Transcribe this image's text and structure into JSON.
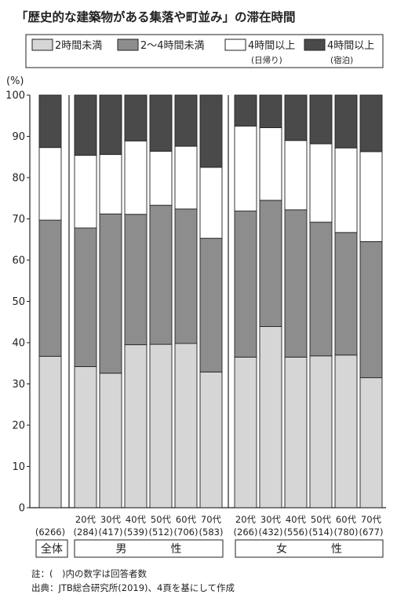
{
  "title": "「歴史的な建築物がある集落や町並み」の滞在時間",
  "legend": [
    {
      "label": "2時間未満",
      "sub": "",
      "color": "#d6d6d6"
    },
    {
      "label": "2～4時間未満",
      "sub": "",
      "color": "#8d8d8d"
    },
    {
      "label": "4時間以上",
      "sub": "(日帰り)",
      "color": "#ffffff"
    },
    {
      "label": "4時間以上",
      "sub": "(宿泊)",
      "color": "#4a4a4a"
    }
  ],
  "y_unit": "(%)",
  "groups": [
    {
      "label": "全体",
      "bars": [
        0
      ]
    },
    {
      "label": "男　　　　性",
      "bars": [
        1,
        2,
        3,
        4,
        5,
        6
      ]
    },
    {
      "label": "女　　　　性",
      "bars": [
        7,
        8,
        9,
        10,
        11,
        12
      ]
    }
  ],
  "notes": [
    "註：(　)内の数字は回答者数",
    "出典：JTB総合研究所(2019)、4頁を基にして作成"
  ],
  "chart_data": {
    "type": "bar",
    "stacked": true,
    "ylim": [
      0,
      100
    ],
    "yticks": [
      0,
      10,
      20,
      30,
      40,
      50,
      60,
      70,
      80,
      90,
      100
    ],
    "categories": [
      {
        "age": "",
        "n": "(6266)"
      },
      {
        "age": "20代",
        "n": "(284)"
      },
      {
        "age": "30代",
        "n": "(417)"
      },
      {
        "age": "40代",
        "n": "(539)"
      },
      {
        "age": "50代",
        "n": "(512)"
      },
      {
        "age": "60代",
        "n": "(706)"
      },
      {
        "age": "70代",
        "n": "(583)"
      },
      {
        "age": "20代",
        "n": "(266)"
      },
      {
        "age": "30代",
        "n": "(432)"
      },
      {
        "age": "40代",
        "n": "(556)"
      },
      {
        "age": "50代",
        "n": "(514)"
      },
      {
        "age": "60代",
        "n": "(780)"
      },
      {
        "age": "70代",
        "n": "(677)"
      }
    ],
    "series": [
      {
        "name": "2時間未満",
        "values": [
          36.7,
          34.2,
          32.6,
          39.5,
          39.6,
          39.8,
          32.9,
          36.5,
          43.9,
          36.5,
          36.8,
          37.0,
          31.5
        ]
      },
      {
        "name": "2～4時間未満",
        "values": [
          33.0,
          33.6,
          38.6,
          31.6,
          33.7,
          32.6,
          32.4,
          35.4,
          30.6,
          35.7,
          32.4,
          29.7,
          33.0
        ]
      },
      {
        "name": "4時間以上(日帰り)",
        "values": [
          17.6,
          17.6,
          14.4,
          17.8,
          13.1,
          15.2,
          17.2,
          20.6,
          17.6,
          16.8,
          19.0,
          20.5,
          21.8
        ]
      },
      {
        "name": "4時間以上(宿泊)",
        "values": [
          12.7,
          14.6,
          14.4,
          11.1,
          13.6,
          12.4,
          17.5,
          7.5,
          7.9,
          11.0,
          11.8,
          12.8,
          13.7
        ]
      }
    ]
  }
}
